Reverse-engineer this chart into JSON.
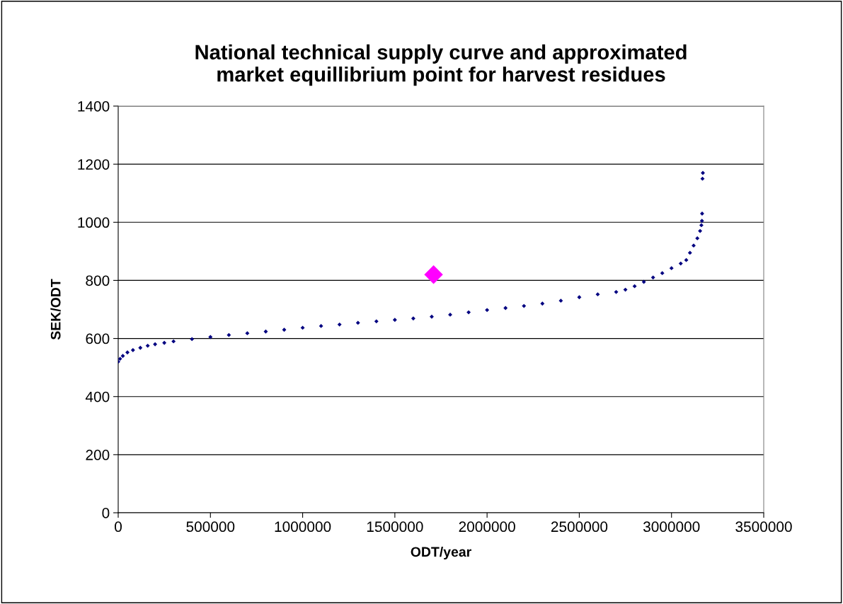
{
  "chart_data": {
    "type": "scatter",
    "title": "National technical supply curve and approximated\nmarket equillibrium point for harvest residues",
    "xlabel": "ODT/year",
    "ylabel": "SEK/ODT",
    "xlim": [
      0,
      3500000
    ],
    "xticks": [
      0,
      500000,
      1000000,
      1500000,
      2000000,
      2500000,
      3000000,
      3500000
    ],
    "ylim": [
      0,
      1400
    ],
    "yticks": [
      0,
      200,
      400,
      600,
      800,
      1000,
      1200,
      1400
    ],
    "grid": "y",
    "marker": "diamond",
    "series": [
      {
        "color": "#000080",
        "x": [
          0,
          10000,
          25000,
          50000,
          80000,
          120000,
          160000,
          200000,
          250000,
          300000,
          400000,
          500000,
          600000,
          700000,
          800000,
          900000,
          1000000,
          1100000,
          1200000,
          1300000,
          1400000,
          1500000,
          1600000,
          1700000,
          1800000,
          1900000,
          2000000,
          2100000,
          2200000,
          2300000,
          2400000,
          2500000,
          2600000,
          2700000,
          2750000,
          2800000,
          2850000,
          2900000,
          2950000,
          3000000,
          3050000,
          3080000,
          3100000,
          3120000,
          3140000,
          3155000,
          3162000,
          3165000,
          3166000,
          3168000,
          3170000
        ],
        "values": [
          520,
          530,
          540,
          552,
          560,
          568,
          575,
          580,
          585,
          590,
          598,
          605,
          612,
          618,
          624,
          630,
          637,
          643,
          648,
          654,
          659,
          664,
          669,
          675,
          682,
          690,
          698,
          705,
          712,
          720,
          730,
          742,
          752,
          760,
          768,
          780,
          795,
          810,
          825,
          842,
          858,
          870,
          895,
          920,
          945,
          970,
          990,
          1005,
          1030,
          1150,
          1170
        ]
      },
      {
        "color": "#ff00ff",
        "x": [
          1710000
        ],
        "values": [
          820
        ]
      }
    ]
  }
}
